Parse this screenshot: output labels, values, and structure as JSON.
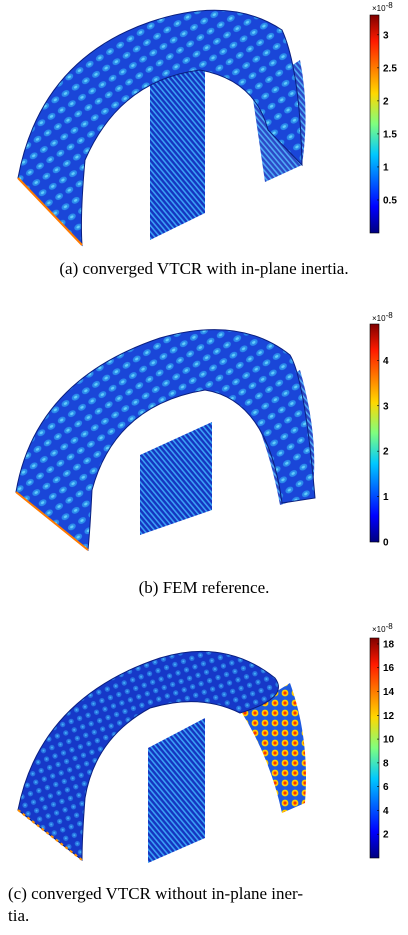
{
  "panels": [
    {
      "caption": "(a) converged VTCR with in-plane inertia.",
      "colorbar": {
        "multiplier": "×10",
        "exponent": "-8",
        "ticks": [
          "3",
          "2.5",
          "2",
          "1.5",
          "1",
          "0.5"
        ],
        "range": [
          0,
          3.3
        ]
      }
    },
    {
      "caption": "(b) FEM reference.",
      "colorbar": {
        "multiplier": "×10",
        "exponent": "-8",
        "ticks": [
          "4",
          "3",
          "2",
          "1",
          "0"
        ],
        "range": [
          0,
          4.8
        ]
      }
    },
    {
      "caption_line1": "(c) converged VTCR without in-plane iner-",
      "caption_line2": "tia.",
      "colorbar": {
        "multiplier": "×10",
        "exponent": "-8",
        "ticks": [
          "18",
          "16",
          "14",
          "12",
          "10",
          "8",
          "6",
          "4",
          "2"
        ],
        "range": [
          0,
          18.5
        ]
      }
    }
  ],
  "colors": {
    "background": "#ffffff",
    "jet_low": "#00008f",
    "jet_mid": "#00c8ff",
    "jet_high": "#800000",
    "shell_base": "#1740d0"
  }
}
